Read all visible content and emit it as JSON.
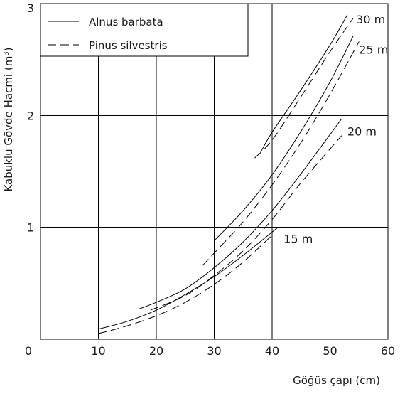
{
  "chart_data": {
    "type": "line",
    "xlabel": "Göğüs çapı (cm)",
    "ylabel_main": "Kabuklu Gövde Hacmi (m",
    "ylabel_sup": "3",
    "ylabel_end": ")",
    "xlim": [
      0,
      60
    ],
    "ylim": [
      0,
      3
    ],
    "x_ticks": [
      0,
      10,
      20,
      30,
      40,
      50,
      60
    ],
    "y_ticks": [
      1,
      2,
      3
    ],
    "x_tick_labels": [
      "0",
      "10",
      "20",
      "30",
      "40",
      "50",
      "60"
    ],
    "y_tick_labels": [
      "1",
      "2",
      "3"
    ],
    "grid": true,
    "legend": {
      "placement": "top-left",
      "entries": [
        {
          "label": "Alnus barbata",
          "style": "solid"
        },
        {
          "label": "Pinus silvestris",
          "style": "dashed"
        }
      ]
    },
    "series": [
      {
        "species": "Alnus barbata",
        "height": "15 m",
        "style": "solid",
        "x": [
          10,
          15,
          20,
          25,
          30,
          35,
          41
        ],
        "y": [
          0.09,
          0.16,
          0.26,
          0.4,
          0.56,
          0.75,
          1.0
        ]
      },
      {
        "species": "Pinus silvestris",
        "height": "15 m",
        "style": "dashed",
        "x": [
          10,
          15,
          20,
          25,
          30,
          35,
          40
        ],
        "y": [
          0.05,
          0.12,
          0.21,
          0.33,
          0.49,
          0.69,
          0.93
        ]
      },
      {
        "species": "Alnus barbata",
        "height": "20 m",
        "style": "solid",
        "x": [
          17,
          20,
          25,
          30,
          35,
          40,
          45,
          52
        ],
        "y": [
          0.27,
          0.33,
          0.45,
          0.64,
          0.87,
          1.15,
          1.48,
          1.97
        ]
      },
      {
        "species": "Pinus silvestris",
        "height": "20 m",
        "style": "dashed",
        "x": [
          19,
          25,
          30,
          35,
          40,
          45,
          52
        ],
        "y": [
          0.26,
          0.39,
          0.57,
          0.79,
          1.07,
          1.4,
          1.82
        ]
      },
      {
        "species": "Alnus barbata",
        "height": "25 m",
        "style": "solid",
        "x": [
          30,
          35,
          40,
          45,
          50,
          54
        ],
        "y": [
          0.88,
          1.15,
          1.47,
          1.86,
          2.3,
          2.71
        ]
      },
      {
        "species": "Pinus silvestris",
        "height": "25 m",
        "style": "dashed",
        "x": [
          28,
          30,
          35,
          40,
          45,
          50,
          55
        ],
        "y": [
          0.66,
          0.77,
          1.05,
          1.38,
          1.76,
          2.19,
          2.66
        ]
      },
      {
        "species": "Alnus barbata",
        "height": "30 m",
        "style": "solid",
        "x": [
          38,
          40,
          45,
          50,
          53
        ],
        "y": [
          1.67,
          1.85,
          2.23,
          2.63,
          2.9
        ]
      },
      {
        "species": "Pinus silvestris",
        "height": "30 m",
        "style": "dashed",
        "x": [
          37,
          40,
          45,
          50,
          54
        ],
        "y": [
          1.62,
          1.78,
          2.17,
          2.57,
          2.87
        ]
      }
    ],
    "annotations": [
      {
        "text": "15 m",
        "x": 42,
        "y": 0.9
      },
      {
        "text": "20 m",
        "x": 53,
        "y": 1.86
      },
      {
        "text": "25 m",
        "x": 55,
        "y": 2.59
      },
      {
        "text": "30 m",
        "x": 54.5,
        "y": 2.86
      }
    ]
  }
}
